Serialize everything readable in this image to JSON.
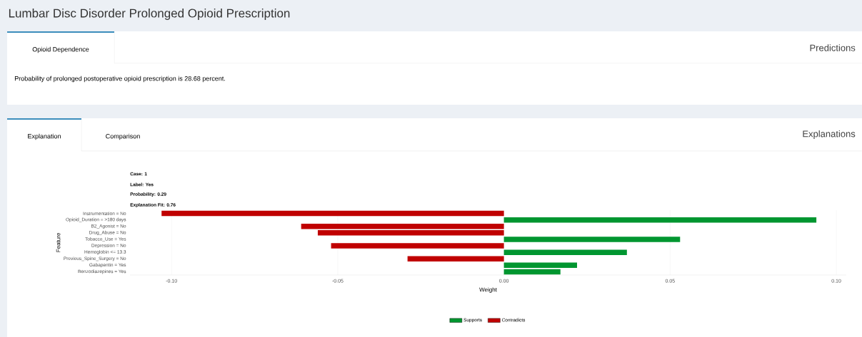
{
  "chart_data": {
    "type": "bar",
    "orientation": "horizontal",
    "title": "Lumbar Disc Disorder Prolonged Opioid Prescription",
    "xlabel": "Weight",
    "ylabel": "Feature",
    "annotations": [
      "Opioid Dependence",
      "Predictions",
      "Probability of prolonged postoperative opioid prescription is 28.68 percent.",
      "Explanation",
      "Comparison",
      "Explanations",
      "Case: 1",
      "Label: Yes",
      "Probability: 0.29",
      "Explanation Fit: 0.76"
    ],
    "categories": [
      "Instrumentation = No",
      "Opioid_Duration = >180 days",
      "B2_Agonist = No",
      "Drug_Abuse = No",
      "Tobacco_Use = Yes",
      "Depression = No",
      "Hemoglobin <= 13.3",
      "Previous_Spine_Surgery = No",
      "Gabapentin = Yes",
      "Benzodiazepines = Yes"
    ],
    "series": [
      {
        "name": "Supports",
        "color": "#009630",
        "values": [
          null,
          0.094,
          null,
          null,
          0.053,
          null,
          0.037,
          null,
          0.022,
          0.017
        ]
      },
      {
        "name": "Contradicts",
        "color": "#c00000",
        "values": [
          -0.103,
          null,
          -0.061,
          -0.056,
          null,
          -0.052,
          null,
          -0.029,
          null,
          null
        ]
      }
    ],
    "xlim": [
      -0.1125,
      0.103
    ],
    "xticks": [
      {
        "value": -0.1,
        "label": "-0.10"
      },
      {
        "value": -0.05,
        "label": "-0.05"
      },
      {
        "value": 0,
        "label": "0.00"
      },
      {
        "value": 0.05,
        "label": "0.05"
      },
      {
        "value": 0.1,
        "label": "0.10"
      }
    ],
    "grid": "x",
    "legend": "bottom"
  }
}
